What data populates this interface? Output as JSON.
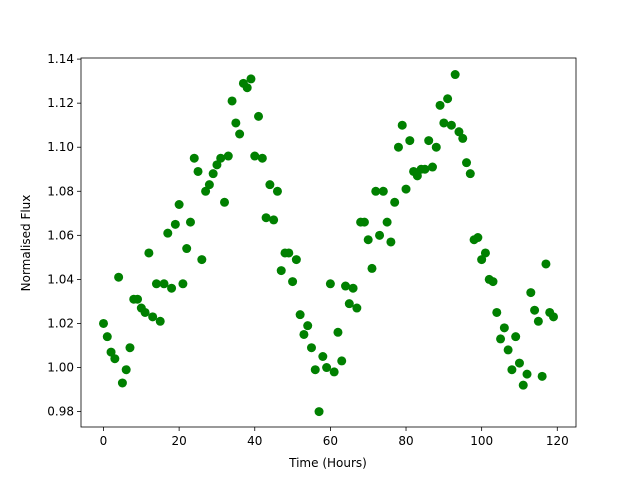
{
  "chart_data": {
    "type": "scatter",
    "x_label": "Time (Hours)",
    "y_label": "Normalised Flux",
    "x": [
      0,
      1,
      2,
      3,
      4,
      5,
      6,
      7,
      8,
      9,
      10,
      11,
      12,
      13,
      14,
      15,
      16,
      17,
      18,
      19,
      20,
      21,
      22,
      23,
      24,
      25,
      26,
      27,
      28,
      29,
      30,
      31,
      32,
      33,
      34,
      35,
      36,
      37,
      38,
      39,
      40,
      41,
      42,
      43,
      44,
      45,
      46,
      47,
      48,
      49,
      50,
      51,
      52,
      53,
      54,
      55,
      56,
      57,
      58,
      59,
      60,
      61,
      62,
      63,
      64,
      65,
      66,
      67,
      68,
      69,
      70,
      71,
      72,
      73,
      74,
      75,
      76,
      77,
      78,
      79,
      80,
      81,
      82,
      83,
      84,
      85,
      86,
      87,
      88,
      89,
      90,
      91,
      92,
      93,
      94,
      95,
      96,
      97,
      98,
      99,
      100,
      101,
      102,
      103,
      104,
      105,
      106,
      107,
      108,
      109,
      110,
      111,
      112,
      113,
      114,
      115,
      116,
      117,
      118,
      119
    ],
    "values": [
      1.02,
      1.014,
      1.007,
      1.004,
      1.041,
      0.993,
      0.999,
      1.009,
      1.031,
      1.031,
      1.027,
      1.025,
      1.052,
      1.023,
      1.038,
      1.021,
      1.038,
      1.061,
      1.036,
      1.065,
      1.074,
      1.038,
      1.054,
      1.066,
      1.095,
      1.089,
      1.049,
      1.08,
      1.083,
      1.088,
      1.092,
      1.095,
      1.075,
      1.096,
      1.121,
      1.111,
      1.106,
      1.129,
      1.127,
      1.131,
      1.096,
      1.114,
      1.095,
      1.068,
      1.083,
      1.067,
      1.08,
      1.044,
      1.052,
      1.052,
      1.039,
      1.049,
      1.024,
      1.015,
      1.019,
      1.009,
      0.999,
      0.98,
      1.005,
      1.0,
      1.038,
      0.998,
      1.016,
      1.003,
      1.037,
      1.029,
      1.036,
      1.027,
      1.066,
      1.066,
      1.058,
      1.045,
      1.08,
      1.06,
      1.08,
      1.066,
      1.057,
      1.075,
      1.1,
      1.11,
      1.081,
      1.103,
      1.089,
      1.087,
      1.09,
      1.09,
      1.103,
      1.091,
      1.1,
      1.119,
      1.111,
      1.122,
      1.11,
      1.133,
      1.107,
      1.104,
      1.093,
      1.088,
      1.058,
      1.059,
      1.049,
      1.052,
      1.04,
      1.039,
      1.025,
      1.013,
      1.018,
      1.008,
      0.999,
      1.014,
      1.002,
      0.992,
      0.997,
      1.034,
      1.026,
      1.021,
      0.996,
      1.047,
      1.025,
      1.023
    ],
    "color": "#008000",
    "xlim": [
      -5.95,
      124.95
    ],
    "xticks": [
      0,
      20,
      40,
      60,
      80,
      100,
      120
    ],
    "ylim": [
      0.973,
      1.1405
    ],
    "yticks": [
      0.98,
      {
        "value": 1.0,
        "label": "1.00"
      },
      1.02,
      1.04,
      1.06,
      1.08,
      {
        "value": 1.1,
        "label": "1.10"
      },
      1.12,
      1.14
    ]
  }
}
